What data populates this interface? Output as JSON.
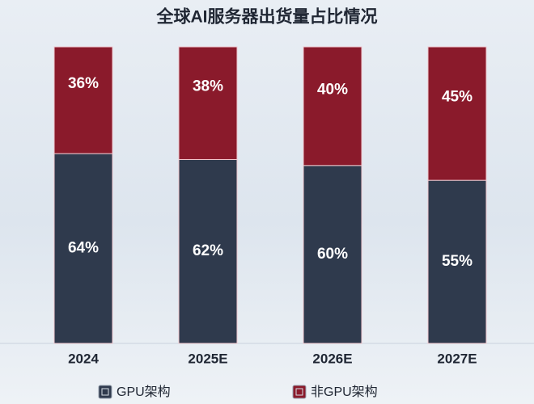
{
  "chart_data": {
    "type": "stacked-bar",
    "title": "全球AI服务器出货量占比情况",
    "categories": [
      "2024",
      "2025E",
      "2026E",
      "2027E"
    ],
    "series": [
      {
        "name": "GPU架构",
        "color": "#2f3a4d",
        "values": [
          64,
          62,
          60,
          55
        ],
        "value_labels": [
          "64%",
          "62%",
          "60%",
          "55%"
        ]
      },
      {
        "name": "非GPU架构",
        "color": "#8a1a2b",
        "values": [
          36,
          38,
          40,
          45
        ],
        "value_labels": [
          "36%",
          "38%",
          "40%",
          "45%"
        ]
      }
    ]
  }
}
